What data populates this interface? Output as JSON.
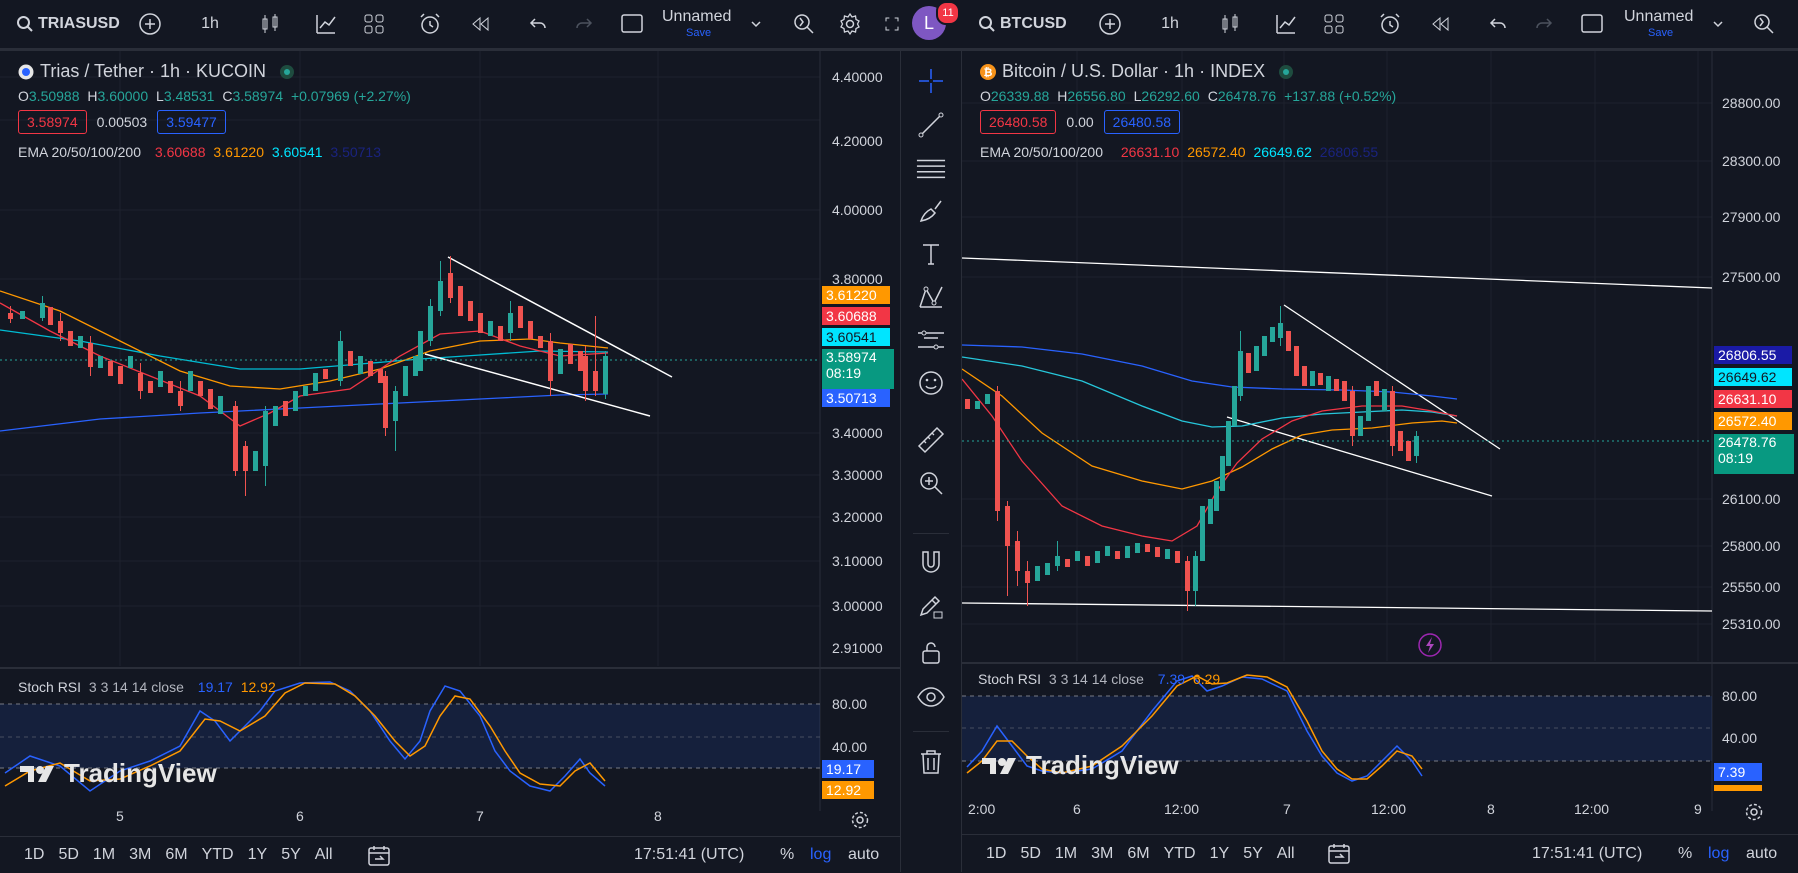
{
  "left": {
    "toolbar": {
      "symbol": "TRIASUSD",
      "interval": "1h",
      "layout_name": "Unnamed",
      "save_label": "Save"
    },
    "legend": {
      "title": "Trias / Tether · 1h · KUCOIN",
      "o_label": "O",
      "o": "3.50988",
      "h_label": "H",
      "h": "3.60000",
      "l_label": "L",
      "l": "3.48531",
      "c_label": "C",
      "c": "3.58974",
      "change": "+0.07969 (+2.27%)",
      "bid": "3.58974",
      "spread": "0.00503",
      "ask": "3.59477",
      "ema_label": "EMA 20/50/100/200",
      "ema20": "3.60688",
      "ema50": "3.61220",
      "ema100": "3.60541",
      "ema200": "3.50713"
    },
    "price_axis": [
      "4.40000",
      "4.20000",
      "4.00000",
      "3.80000",
      "3.40000",
      "3.30000",
      "3.20000",
      "3.10000",
      "3.00000",
      "2.91000"
    ],
    "price_tags": {
      "ema50": "3.61220",
      "ema20": "3.60688",
      "ema100": "3.60541",
      "last": "3.58974",
      "countdown": "08:19",
      "ema200": "3.50713"
    },
    "stoch": {
      "label": "Stoch RSI",
      "params": "3 3 14 14 close",
      "k": "19.17",
      "d": "12.92",
      "axis": [
        "80.00",
        "40.00"
      ],
      "tag_k": "19.17",
      "tag_d": "12.92"
    },
    "time_axis": [
      "5",
      "6",
      "7",
      "8"
    ],
    "watermark": "TradingView",
    "bottom": {
      "ranges": [
        "1D",
        "5D",
        "1M",
        "3M",
        "6M",
        "YTD",
        "1Y",
        "5Y",
        "All"
      ],
      "clock": "17:51:41 (UTC)",
      "pct": "%",
      "log": "log",
      "auto": "auto"
    }
  },
  "right": {
    "toolbar": {
      "symbol": "BTCUSD",
      "interval": "1h",
      "layout_name": "Unnamed",
      "save_label": "Save",
      "avatar_letter": "L",
      "notifications": "11"
    },
    "legend": {
      "title": "Bitcoin / U.S. Dollar · 1h · INDEX",
      "o_label": "O",
      "o": "26339.88",
      "h_label": "H",
      "h": "26556.80",
      "l_label": "L",
      "l": "26292.60",
      "c_label": "C",
      "c": "26478.76",
      "change": "+137.88 (+0.52%)",
      "bid": "26480.58",
      "spread": "0.00",
      "ask": "26480.58",
      "ema_label": "EMA 20/50/100/200",
      "ema20": "26631.10",
      "ema50": "26572.40",
      "ema100": "26649.62",
      "ema200": "26806.55"
    },
    "price_axis": [
      "28800.00",
      "28300.00",
      "27900.00",
      "27500.00",
      "26100.00",
      "25800.00",
      "25550.00",
      "25310.00"
    ],
    "price_tags": {
      "ema200": "26806.55",
      "ema100": "26649.62",
      "ema20": "26631.10",
      "ema50": "26572.40",
      "last": "26478.76",
      "countdown": "08:19"
    },
    "stoch": {
      "label": "Stoch RSI",
      "params": "3 3 14 14 close",
      "k": "7.39",
      "d": "6.29",
      "axis": [
        "80.00",
        "40.00"
      ],
      "tag_k": "7.39"
    },
    "time_axis": [
      "2:00",
      "6",
      "12:00",
      "7",
      "12:00",
      "8",
      "12:00",
      "9"
    ],
    "watermark": "TradingView",
    "bottom": {
      "ranges": [
        "1D",
        "5D",
        "1M",
        "3M",
        "6M",
        "YTD",
        "1Y",
        "5Y",
        "All"
      ],
      "clock": "17:51:41 (UTC)",
      "pct": "%",
      "log": "log",
      "auto": "auto"
    }
  },
  "colors": {
    "up": "#26a69a",
    "down": "#ef5350",
    "ema20": "#f23645",
    "ema50": "#ff9800",
    "ema100": "#00e5ff",
    "ema200": "#2962ff",
    "background": "#131722",
    "accent": "#2962ff"
  },
  "sidebar_tools": [
    "crosshair-icon",
    "trendline-icon",
    "fib-icon",
    "brush-icon",
    "text-icon",
    "pattern-icon",
    "forecast-icon",
    "emoji-icon",
    "ruler-icon",
    "zoom-icon",
    "magnet-icon",
    "lock-draw-icon",
    "lock-icon",
    "eye-icon",
    "trash-icon"
  ]
}
